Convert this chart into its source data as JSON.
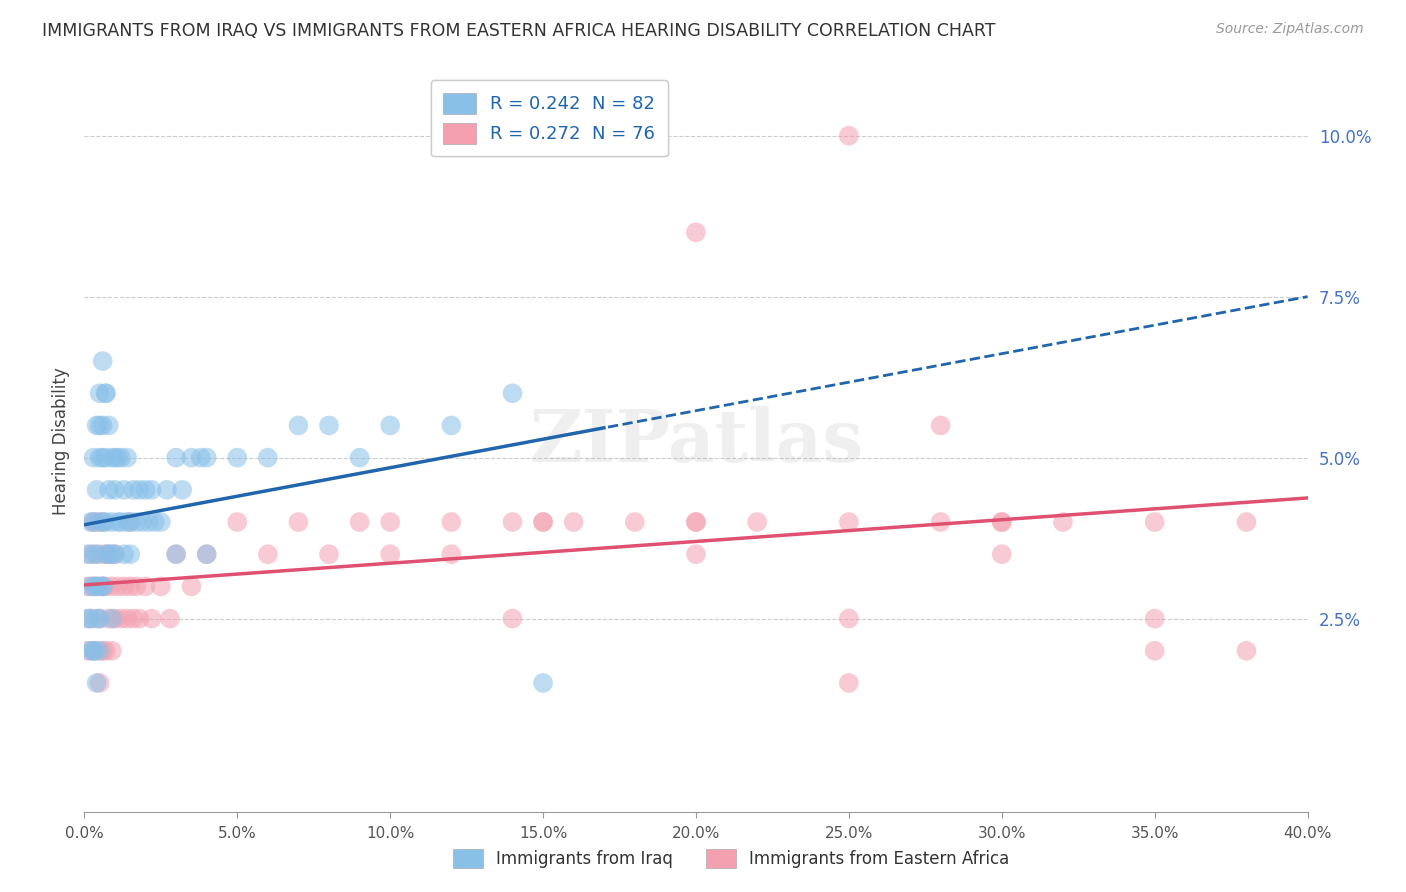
{
  "title": "IMMIGRANTS FROM IRAQ VS IMMIGRANTS FROM EASTERN AFRICA HEARING DISABILITY CORRELATION CHART",
  "source": "Source: ZipAtlas.com",
  "ylabel": "Hearing Disability",
  "legend_iraq": "Immigrants from Iraq",
  "legend_ea": "Immigrants from Eastern Africa",
  "r_iraq": 0.242,
  "n_iraq": 82,
  "r_ea": 0.272,
  "n_ea": 76,
  "color_iraq": "#88c0e8",
  "color_ea": "#f4a0b0",
  "line_color_iraq": "#2166ac",
  "line_color_ea": "#e05070",
  "xlim": [
    0.0,
    0.4
  ],
  "ylim": [
    -0.005,
    0.11
  ],
  "yticks": [
    0.025,
    0.05,
    0.075,
    0.1
  ],
  "ytick_labels": [
    "2.5%",
    "5.0%",
    "7.5%",
    "10.0%"
  ],
  "xticks": [
    0.0,
    0.05,
    0.1,
    0.15,
    0.2,
    0.25,
    0.3,
    0.35,
    0.4
  ],
  "xtick_labels": [
    "0.0%",
    "5.0%",
    "10.0%",
    "15.0%",
    "20.0%",
    "25.0%",
    "30.0%",
    "35.0%",
    "40.0%"
  ],
  "background_color": "#ffffff",
  "grid_color": "#cccccc",
  "tick_color": "#4472c4",
  "legend_label_color": "#2166ac",
  "iraq_x": [
    0.001,
    0.001,
    0.002,
    0.002,
    0.002,
    0.003,
    0.003,
    0.003,
    0.003,
    0.004,
    0.004,
    0.004,
    0.004,
    0.005,
    0.005,
    0.005,
    0.005,
    0.005,
    0.006,
    0.006,
    0.006,
    0.006,
    0.007,
    0.007,
    0.007,
    0.007,
    0.008,
    0.008,
    0.008,
    0.009,
    0.009,
    0.009,
    0.009,
    0.01,
    0.01,
    0.01,
    0.011,
    0.011,
    0.012,
    0.012,
    0.013,
    0.013,
    0.014,
    0.014,
    0.015,
    0.015,
    0.016,
    0.017,
    0.018,
    0.019,
    0.02,
    0.021,
    0.022,
    0.023,
    0.025,
    0.027,
    0.03,
    0.032,
    0.035,
    0.038,
    0.04,
    0.05,
    0.06,
    0.07,
    0.08,
    0.09,
    0.1,
    0.12,
    0.14,
    0.03,
    0.04,
    0.005,
    0.006,
    0.007,
    0.003,
    0.004,
    0.002,
    0.003,
    0.004,
    0.005,
    0.006,
    0.15
  ],
  "iraq_y": [
    0.035,
    0.025,
    0.04,
    0.03,
    0.02,
    0.05,
    0.04,
    0.03,
    0.02,
    0.055,
    0.045,
    0.035,
    0.025,
    0.06,
    0.05,
    0.04,
    0.03,
    0.02,
    0.05,
    0.04,
    0.03,
    0.055,
    0.06,
    0.05,
    0.04,
    0.035,
    0.055,
    0.045,
    0.035,
    0.05,
    0.04,
    0.035,
    0.025,
    0.05,
    0.045,
    0.035,
    0.05,
    0.04,
    0.05,
    0.04,
    0.045,
    0.035,
    0.05,
    0.04,
    0.04,
    0.035,
    0.045,
    0.04,
    0.045,
    0.04,
    0.045,
    0.04,
    0.045,
    0.04,
    0.04,
    0.045,
    0.05,
    0.045,
    0.05,
    0.05,
    0.05,
    0.05,
    0.05,
    0.055,
    0.055,
    0.05,
    0.055,
    0.055,
    0.06,
    0.035,
    0.035,
    0.055,
    0.065,
    0.06,
    0.035,
    0.03,
    0.025,
    0.02,
    0.015,
    0.025,
    0.03,
    0.015
  ],
  "ea_x": [
    0.001,
    0.001,
    0.002,
    0.002,
    0.003,
    0.003,
    0.003,
    0.004,
    0.004,
    0.004,
    0.005,
    0.005,
    0.005,
    0.006,
    0.006,
    0.006,
    0.007,
    0.007,
    0.007,
    0.008,
    0.008,
    0.009,
    0.009,
    0.01,
    0.01,
    0.011,
    0.012,
    0.013,
    0.014,
    0.015,
    0.015,
    0.016,
    0.017,
    0.018,
    0.02,
    0.022,
    0.025,
    0.028,
    0.03,
    0.035,
    0.04,
    0.05,
    0.06,
    0.07,
    0.08,
    0.09,
    0.1,
    0.12,
    0.14,
    0.16,
    0.18,
    0.2,
    0.22,
    0.25,
    0.28,
    0.3,
    0.32,
    0.35,
    0.25,
    0.3,
    0.28,
    0.38,
    0.35,
    0.15,
    0.2,
    0.25,
    0.1,
    0.12,
    0.14,
    0.25,
    0.35,
    0.15,
    0.2,
    0.38,
    0.3,
    0.2
  ],
  "ea_y": [
    0.02,
    0.03,
    0.025,
    0.035,
    0.02,
    0.03,
    0.04,
    0.02,
    0.03,
    0.04,
    0.015,
    0.025,
    0.035,
    0.02,
    0.03,
    0.04,
    0.02,
    0.03,
    0.035,
    0.025,
    0.035,
    0.02,
    0.03,
    0.025,
    0.035,
    0.03,
    0.025,
    0.03,
    0.025,
    0.03,
    0.04,
    0.025,
    0.03,
    0.025,
    0.03,
    0.025,
    0.03,
    0.025,
    0.035,
    0.03,
    0.035,
    0.04,
    0.035,
    0.04,
    0.035,
    0.04,
    0.035,
    0.04,
    0.04,
    0.04,
    0.04,
    0.04,
    0.04,
    0.04,
    0.04,
    0.04,
    0.04,
    0.04,
    0.025,
    0.04,
    0.055,
    0.04,
    0.025,
    0.04,
    0.035,
    0.015,
    0.04,
    0.035,
    0.025,
    0.1,
    0.02,
    0.04,
    0.085,
    0.02,
    0.035,
    0.04
  ]
}
